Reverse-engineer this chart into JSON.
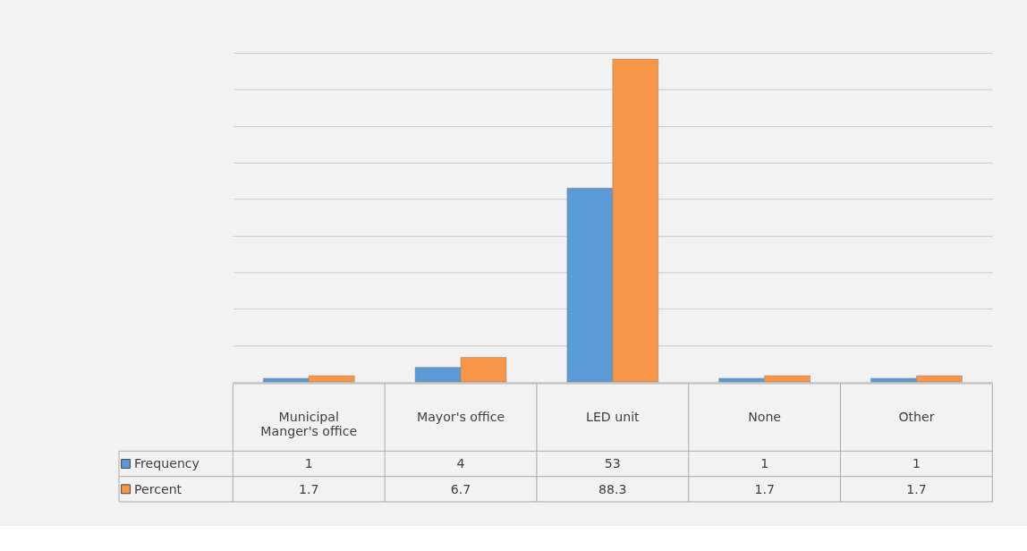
{
  "chart_data": {
    "type": "bar",
    "categories": [
      "Municipal Manger's office",
      "Mayor's office",
      "LED unit",
      "None",
      "Other"
    ],
    "series": [
      {
        "name": "Frequency",
        "color": "#5b9bd5",
        "values": [
          1,
          4,
          53,
          1,
          1
        ]
      },
      {
        "name": "Percent",
        "color": "#f79646",
        "values": [
          1.7,
          6.7,
          88.3,
          1.7,
          1.7
        ]
      }
    ],
    "ylim": [
      0,
      90
    ],
    "yticks": [
      {
        "value": 0,
        "label": null
      },
      {
        "value": 10,
        "label": null
      },
      {
        "value": 20,
        "label": null
      },
      {
        "value": 30,
        "label": null
      },
      {
        "value": 40,
        "label": null
      },
      {
        "value": 50,
        "label": null
      },
      {
        "value": 60,
        "label": null
      },
      {
        "value": 70,
        "label": null
      },
      {
        "value": 80,
        "label": null
      },
      {
        "value": 90,
        "label": null
      }
    ],
    "tick_labels": "x",
    "grid": "y",
    "legend": "bottom left",
    "data_labels": true
  }
}
